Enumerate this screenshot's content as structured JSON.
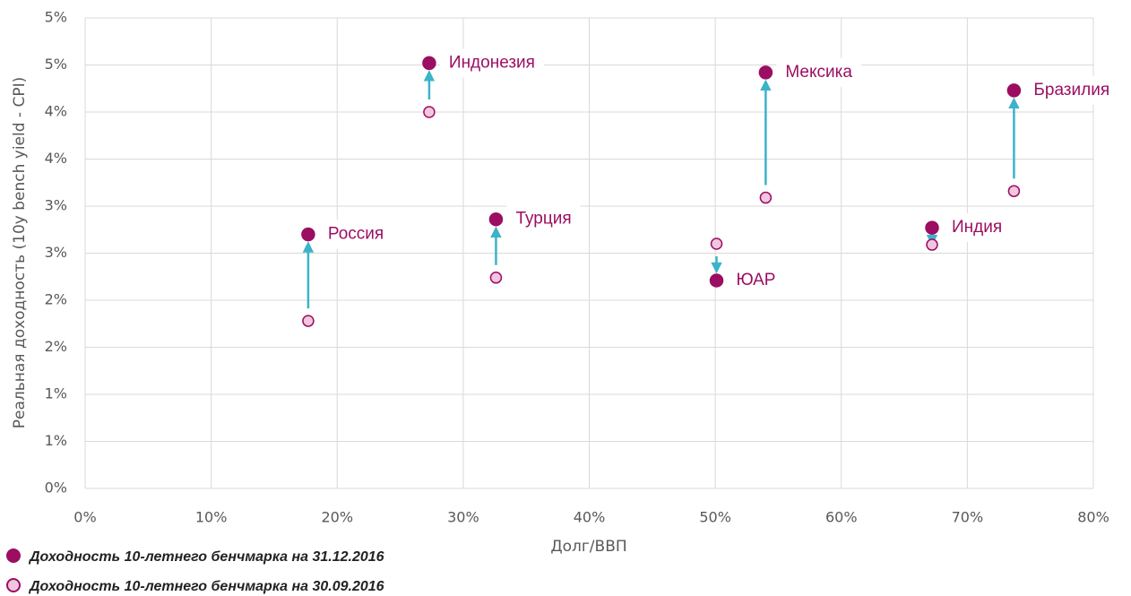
{
  "chart_data": {
    "type": "scatter",
    "x_label": "Долг/ВВП",
    "y_label": "Реальная доходность (10y bench yield - CPI)",
    "labels": [
      "Россия",
      "Индонезия",
      "Турция",
      "ЮАР",
      "Мексика",
      "Индия",
      "Бразилия"
    ],
    "series": [
      {
        "name": "Доходность 10-летнего бенчмарка на 31.12.2016",
        "color": "#9b0e62",
        "x": [
          17.7,
          27.3,
          32.6,
          50.1,
          54.0,
          67.2,
          73.7
        ],
        "values": [
          2.7,
          4.52,
          2.86,
          2.21,
          4.42,
          2.77,
          4.23
        ]
      },
      {
        "name": "Доходность 10-летнего бенчмарка на 30.09.2016",
        "color": "#f1c6de",
        "x": [
          17.7,
          27.3,
          32.6,
          50.1,
          54.0,
          67.2,
          73.7
        ],
        "values": [
          1.78,
          4.0,
          2.24,
          2.6,
          3.09,
          2.59,
          3.16
        ]
      }
    ],
    "arrow_color": "#3bb3c9",
    "xlim": [
      0,
      80
    ],
    "xticks": [
      {
        "value": 0,
        "label": "0%"
      },
      {
        "value": 10,
        "label": "10%"
      },
      {
        "value": 20,
        "label": "20%"
      },
      {
        "value": 30,
        "label": "30%"
      },
      {
        "value": 40,
        "label": "40%"
      },
      {
        "value": 50,
        "label": "50%"
      },
      {
        "value": 60,
        "label": "60%"
      },
      {
        "value": 70,
        "label": "70%"
      },
      {
        "value": 80,
        "label": "80%"
      }
    ],
    "ylim": [
      0,
      5
    ],
    "yticks": [
      {
        "value": 0,
        "label": "0%"
      },
      {
        "value": 0.5,
        "label": "1%"
      },
      {
        "value": 1,
        "label": "1%"
      },
      {
        "value": 1.5,
        "label": "2%"
      },
      {
        "value": 2,
        "label": "2%"
      },
      {
        "value": 2.5,
        "label": "3%"
      },
      {
        "value": 3,
        "label": "3%"
      },
      {
        "value": 3.5,
        "label": "4%"
      },
      {
        "value": 4,
        "label": "4%"
      },
      {
        "value": 4.5,
        "label": "5%"
      },
      {
        "value": 5,
        "label": "5%"
      }
    ],
    "grid": true
  }
}
